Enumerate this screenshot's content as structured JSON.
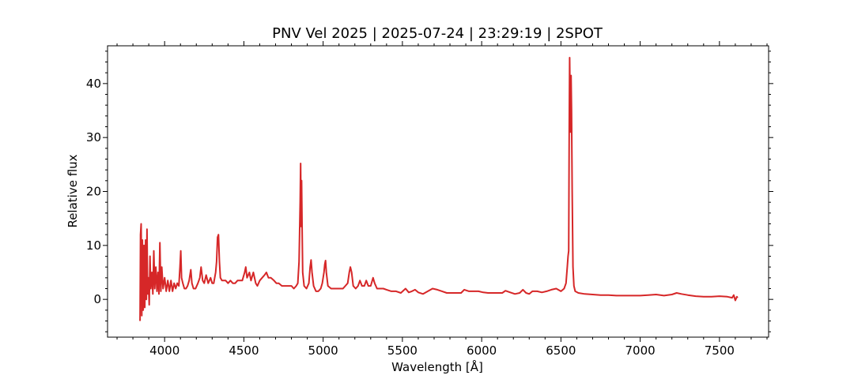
{
  "chart_data": {
    "type": "line",
    "title": "PNV Vel 2025 | 2025-07-24 | 23:29:19 | 2SPOT",
    "xlabel": "Wavelength [Å]",
    "ylabel": "Relative flux",
    "xlim": [
      3640,
      7810
    ],
    "ylim": [
      -7,
      47
    ],
    "x_ticks": [
      4000,
      4500,
      5000,
      5500,
      6000,
      6500,
      7000,
      7500
    ],
    "y_ticks": [
      0,
      10,
      20,
      30,
      40
    ],
    "grid": false,
    "line_color": "#d62728",
    "series": [
      {
        "points": [
          [
            3845,
            -4
          ],
          [
            3848,
            12
          ],
          [
            3852,
            14
          ],
          [
            3856,
            -3
          ],
          [
            3860,
            11
          ],
          [
            3865,
            -2
          ],
          [
            3870,
            10
          ],
          [
            3875,
            -1.5
          ],
          [
            3880,
            11
          ],
          [
            3885,
            0
          ],
          [
            3889,
            13
          ],
          [
            3893,
            1
          ],
          [
            3898,
            4
          ],
          [
            3903,
            -1
          ],
          [
            3908,
            8
          ],
          [
            3913,
            2
          ],
          [
            3920,
            5
          ],
          [
            3926,
            1
          ],
          [
            3932,
            9
          ],
          [
            3938,
            2
          ],
          [
            3945,
            6
          ],
          [
            3952,
            1.5
          ],
          [
            3958,
            5
          ],
          [
            3964,
            1
          ],
          [
            3970,
            10.5
          ],
          [
            3976,
            1.5
          ],
          [
            3982,
            6
          ],
          [
            3990,
            2
          ],
          [
            4000,
            4
          ],
          [
            4010,
            1.5
          ],
          [
            4020,
            3.5
          ],
          [
            4030,
            1.5
          ],
          [
            4040,
            3.5
          ],
          [
            4050,
            1.5
          ],
          [
            4060,
            3
          ],
          [
            4070,
            2
          ],
          [
            4080,
            3
          ],
          [
            4090,
            2.5
          ],
          [
            4097,
            6
          ],
          [
            4102,
            9
          ],
          [
            4107,
            4
          ],
          [
            4115,
            3
          ],
          [
            4125,
            2
          ],
          [
            4135,
            2
          ],
          [
            4145,
            2.5
          ],
          [
            4155,
            3.5
          ],
          [
            4165,
            5.5
          ],
          [
            4172,
            3
          ],
          [
            4182,
            2
          ],
          [
            4195,
            2
          ],
          [
            4210,
            3
          ],
          [
            4222,
            4
          ],
          [
            4230,
            6
          ],
          [
            4240,
            3.5
          ],
          [
            4250,
            3
          ],
          [
            4262,
            4.5
          ],
          [
            4275,
            3
          ],
          [
            4290,
            4
          ],
          [
            4300,
            3
          ],
          [
            4310,
            3
          ],
          [
            4322,
            5
          ],
          [
            4328,
            7
          ],
          [
            4334,
            11.5
          ],
          [
            4340,
            12
          ],
          [
            4346,
            7
          ],
          [
            4352,
            4
          ],
          [
            4362,
            3.5
          ],
          [
            4375,
            3.5
          ],
          [
            4385,
            3.5
          ],
          [
            4400,
            3
          ],
          [
            4415,
            3.5
          ],
          [
            4430,
            3
          ],
          [
            4445,
            3
          ],
          [
            4460,
            3.5
          ],
          [
            4475,
            3.5
          ],
          [
            4490,
            3.5
          ],
          [
            4505,
            5
          ],
          [
            4512,
            6
          ],
          [
            4520,
            4
          ],
          [
            4535,
            5
          ],
          [
            4545,
            3.5
          ],
          [
            4560,
            5
          ],
          [
            4575,
            3
          ],
          [
            4585,
            2.5
          ],
          [
            4600,
            3.5
          ],
          [
            4615,
            4
          ],
          [
            4630,
            4.5
          ],
          [
            4642,
            5
          ],
          [
            4655,
            4
          ],
          [
            4670,
            4
          ],
          [
            4690,
            3.5
          ],
          [
            4705,
            3
          ],
          [
            4720,
            3
          ],
          [
            4740,
            2.5
          ],
          [
            4760,
            2.5
          ],
          [
            4780,
            2.5
          ],
          [
            4800,
            2.5
          ],
          [
            4815,
            2
          ],
          [
            4830,
            2.5
          ],
          [
            4840,
            3
          ],
          [
            4848,
            7
          ],
          [
            4855,
            18
          ],
          [
            4858,
            25.2
          ],
          [
            4861,
            13.5
          ],
          [
            4864,
            22
          ],
          [
            4867,
            14
          ],
          [
            4871,
            5
          ],
          [
            4880,
            2.5
          ],
          [
            4895,
            2
          ],
          [
            4910,
            3
          ],
          [
            4918,
            6
          ],
          [
            4924,
            7.3
          ],
          [
            4930,
            5
          ],
          [
            4940,
            2.5
          ],
          [
            4955,
            1.5
          ],
          [
            4970,
            1.5
          ],
          [
            4985,
            2
          ],
          [
            4995,
            3
          ],
          [
            5005,
            5
          ],
          [
            5010,
            6.5
          ],
          [
            5015,
            7.2
          ],
          [
            5020,
            5
          ],
          [
            5030,
            2.5
          ],
          [
            5050,
            2
          ],
          [
            5075,
            2
          ],
          [
            5100,
            2
          ],
          [
            5125,
            2
          ],
          [
            5140,
            2.5
          ],
          [
            5155,
            3
          ],
          [
            5165,
            5
          ],
          [
            5172,
            6
          ],
          [
            5180,
            5
          ],
          [
            5190,
            2.5
          ],
          [
            5205,
            2
          ],
          [
            5220,
            2.5
          ],
          [
            5232,
            3.5
          ],
          [
            5245,
            2.5
          ],
          [
            5260,
            2.5
          ],
          [
            5272,
            3.5
          ],
          [
            5285,
            2.5
          ],
          [
            5300,
            2.5
          ],
          [
            5315,
            4
          ],
          [
            5325,
            3
          ],
          [
            5340,
            2
          ],
          [
            5360,
            2
          ],
          [
            5380,
            2
          ],
          [
            5400,
            1.8
          ],
          [
            5430,
            1.5
          ],
          [
            5460,
            1.5
          ],
          [
            5490,
            1.2
          ],
          [
            5520,
            2
          ],
          [
            5540,
            1.3
          ],
          [
            5560,
            1.5
          ],
          [
            5580,
            1.8
          ],
          [
            5600,
            1.3
          ],
          [
            5630,
            1
          ],
          [
            5660,
            1.5
          ],
          [
            5690,
            2
          ],
          [
            5720,
            1.8
          ],
          [
            5750,
            1.5
          ],
          [
            5780,
            1.2
          ],
          [
            5810,
            1.2
          ],
          [
            5840,
            1.2
          ],
          [
            5870,
            1.2
          ],
          [
            5890,
            1.8
          ],
          [
            5920,
            1.5
          ],
          [
            5950,
            1.5
          ],
          [
            5980,
            1.5
          ],
          [
            6010,
            1.3
          ],
          [
            6040,
            1.2
          ],
          [
            6070,
            1.2
          ],
          [
            6100,
            1.2
          ],
          [
            6130,
            1.2
          ],
          [
            6150,
            1.6
          ],
          [
            6180,
            1.3
          ],
          [
            6210,
            1
          ],
          [
            6240,
            1.2
          ],
          [
            6260,
            1.8
          ],
          [
            6280,
            1.2
          ],
          [
            6300,
            1
          ],
          [
            6320,
            1.5
          ],
          [
            6350,
            1.5
          ],
          [
            6380,
            1.3
          ],
          [
            6410,
            1.5
          ],
          [
            6440,
            1.8
          ],
          [
            6470,
            2
          ],
          [
            6500,
            1.5
          ],
          [
            6520,
            2
          ],
          [
            6532,
            3
          ],
          [
            6540,
            6
          ],
          [
            6545,
            8
          ],
          [
            6549,
            9
          ],
          [
            6552,
            30
          ],
          [
            6555,
            44.8
          ],
          [
            6558,
            37
          ],
          [
            6561,
            31
          ],
          [
            6564,
            41.5
          ],
          [
            6567,
            35
          ],
          [
            6571,
            20
          ],
          [
            6576,
            6
          ],
          [
            6582,
            2.5
          ],
          [
            6590,
            1.5
          ],
          [
            6610,
            1.2
          ],
          [
            6650,
            1
          ],
          [
            6700,
            0.9
          ],
          [
            6750,
            0.8
          ],
          [
            6800,
            0.8
          ],
          [
            6850,
            0.7
          ],
          [
            6900,
            0.7
          ],
          [
            6950,
            0.7
          ],
          [
            7000,
            0.7
          ],
          [
            7050,
            0.8
          ],
          [
            7100,
            0.9
          ],
          [
            7150,
            0.7
          ],
          [
            7200,
            0.9
          ],
          [
            7230,
            1.2
          ],
          [
            7260,
            1
          ],
          [
            7300,
            0.8
          ],
          [
            7350,
            0.6
          ],
          [
            7400,
            0.5
          ],
          [
            7450,
            0.5
          ],
          [
            7500,
            0.6
          ],
          [
            7550,
            0.5
          ],
          [
            7580,
            0.3
          ],
          [
            7590,
            0.8
          ],
          [
            7600,
            -0.2
          ],
          [
            7610,
            0.5
          ],
          [
            7615,
            0.3
          ]
        ]
      }
    ]
  }
}
